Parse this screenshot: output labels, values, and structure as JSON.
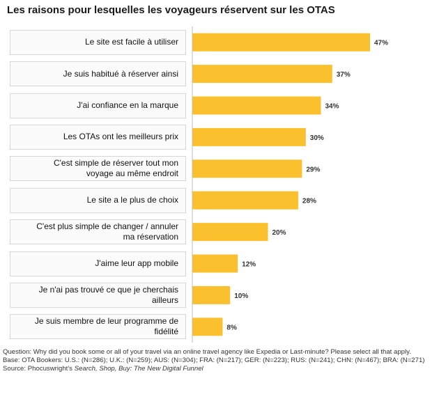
{
  "chart_data": {
    "type": "bar",
    "orientation": "horizontal",
    "title": "Les raisons pour lesquelles les voyageurs réservent sur les OTAS",
    "categories": [
      "Le site est facile à utiliser",
      "Je suis habitué à réserver ainsi",
      "J'ai confiance en la marque",
      "Les OTAs ont les meilleurs prix",
      "C'est simple de réserver tout mon voyage au même endroit",
      "Le site a le plus de choix",
      "C'est plus simple de changer / annuler ma réservation",
      "J'aime leur app mobile",
      "Je n'ai pas trouvé ce que je cherchais ailleurs",
      "Je suis membre de leur programme de fidélité"
    ],
    "category_lines": [
      [
        "Le site est facile à utiliser"
      ],
      [
        "Je suis habitué à réserver ainsi"
      ],
      [
        "J'ai confiance en la marque"
      ],
      [
        "Les OTAs ont les meilleurs prix"
      ],
      [
        "C'est simple de réserver tout mon",
        "voyage au même endroit"
      ],
      [
        "Le site a le plus de choix"
      ],
      [
        "C'est plus simple de changer / annuler",
        "ma réservation"
      ],
      [
        "J'aime leur app mobile"
      ],
      [
        "Je n'ai pas trouvé ce que je cherchais",
        "ailleurs"
      ],
      [
        "Je suis membre de leur programme de",
        "fidélité"
      ]
    ],
    "values": [
      47,
      37,
      34,
      30,
      29,
      28,
      20,
      12,
      10,
      8
    ],
    "value_labels": [
      "47%",
      "37%",
      "34%",
      "30%",
      "29%",
      "28%",
      "20%",
      "12%",
      "10%",
      "8%"
    ],
    "xlim": [
      0,
      50
    ],
    "bar_color": "#fbc02d",
    "grid": false,
    "legend": "none"
  },
  "footnote": {
    "question": "Question: Why did you book some or all of your travel via an online travel agency like Expedia or Last-minute? Please select all that apply.",
    "base": "Base: OTA Bookers: U.S.: (N=286); U.K.: (N=259); AUS: (N=304); FRA: (N=217); GER: (N=223); RUS: (N=241); CHN: (N=467); BRA: (N=271)",
    "source_prefix": "Source: Phocuswright's ",
    "source_title": "Search, Shop, Buy: The New Digital Funnel"
  }
}
